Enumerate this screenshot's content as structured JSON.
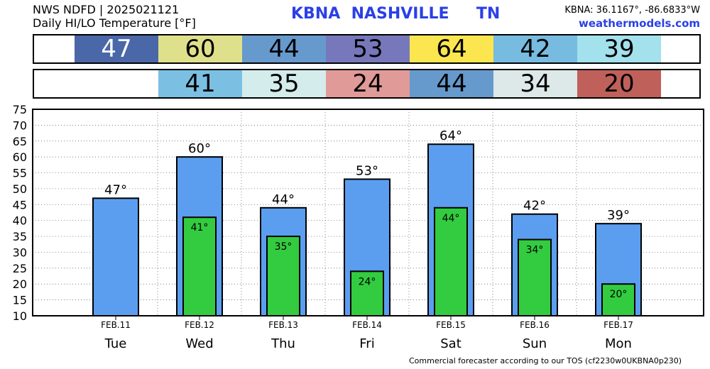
{
  "header": {
    "line1": "NWS NDFD | 2025021121",
    "line2": "Daily HI/LO Temperature [°F]",
    "station": "KBNA  NASHVILLE     TN",
    "coords": "KBNA: 36.1167°, -86.6833°W",
    "site": "weathermodels.com"
  },
  "hi_strip": [
    {
      "value": "47",
      "color": "#4a67a8"
    },
    {
      "value": "60",
      "color": "#dfe08b"
    },
    {
      "value": "44",
      "color": "#6699cc"
    },
    {
      "value": "53",
      "color": "#7777bb"
    },
    {
      "value": "64",
      "color": "#fbe64f"
    },
    {
      "value": "42",
      "color": "#77bbe0"
    },
    {
      "value": "39",
      "color": "#a3e1ec"
    }
  ],
  "lo_strip": [
    {
      "value": "",
      "color": "#ffffff"
    },
    {
      "value": "41",
      "color": "#7bc0e3"
    },
    {
      "value": "35",
      "color": "#d4ecec"
    },
    {
      "value": "24",
      "color": "#e09a98"
    },
    {
      "value": "44",
      "color": "#6699cc"
    },
    {
      "value": "34",
      "color": "#dde8e8"
    },
    {
      "value": "20",
      "color": "#c0605a"
    }
  ],
  "chart_data": {
    "type": "bar",
    "categories": [
      "Tue",
      "Wed",
      "Thu",
      "Fri",
      "Sat",
      "Sun",
      "Mon"
    ],
    "dates": [
      "FEB.11",
      "FEB.12",
      "FEB.13",
      "FEB.14",
      "FEB.15",
      "FEB.16",
      "FEB.17"
    ],
    "series": [
      {
        "values": [
          47,
          60,
          44,
          53,
          64,
          42,
          39
        ],
        "color": "#5b9ef0"
      },
      {
        "values": [
          null,
          41,
          35,
          24,
          44,
          34,
          20
        ],
        "color": "#33cc40"
      }
    ],
    "hi_labels": [
      "47°",
      "60°",
      "44°",
      "53°",
      "64°",
      "42°",
      "39°"
    ],
    "lo_labels": [
      "",
      "41°",
      "35°",
      "24°",
      "44°",
      "34°",
      "20°"
    ],
    "yticks": [
      "75",
      "70",
      "65",
      "60",
      "55",
      "50",
      "45",
      "40",
      "35",
      "30",
      "25",
      "20",
      "15",
      "10"
    ],
    "ylim": [
      10,
      75
    ],
    "grid": true
  },
  "footer": "Commercial forecaster according to our TOS (cf2230w0UKBNA0p230)"
}
